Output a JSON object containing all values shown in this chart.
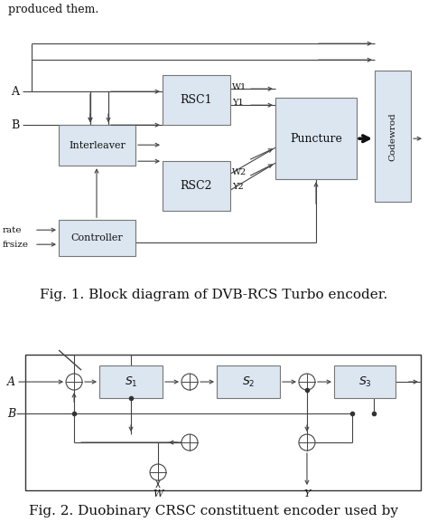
{
  "bg_color": "#ffffff",
  "fig1_title": "Fig. 1. Block diagram of DVB-RCS Turbo encoder.",
  "fig2_title": "Fig. 2. Duobinary CRSC constituent encoder used by",
  "header_text": "produced them.",
  "box_fill": "#dce6f1",
  "box_edge": "#777777",
  "fig1_caption_fontsize": 11,
  "fig2_caption_fontsize": 11
}
